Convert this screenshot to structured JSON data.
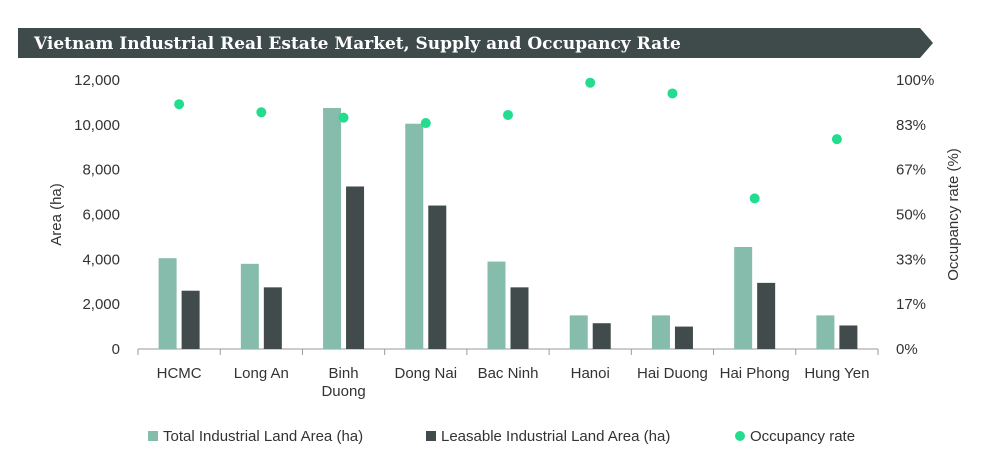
{
  "colors": {
    "banner": "#3f4a4a",
    "total": "#86bcac",
    "leasable": "#414b4b",
    "occupancy": "#23dd8f",
    "axis": "#9a9a9a",
    "text": "#333333"
  },
  "chart_data": {
    "type": "bar",
    "title": "Vietnam Industrial Real Estate Market, Supply and Occupancy Rate",
    "categories": [
      [
        "HCMC"
      ],
      [
        "Long An"
      ],
      [
        "Binh",
        "Duong"
      ],
      [
        "Dong Nai"
      ],
      [
        "Bac Ninh"
      ],
      [
        "Hanoi"
      ],
      [
        "Hai Duong"
      ],
      [
        "Hai Phong"
      ],
      [
        "Hung Yen"
      ]
    ],
    "ylabel": "Area (ha)",
    "y2label": "Occupancy rate (%)",
    "ylim": [
      0,
      12000
    ],
    "y2lim": [
      0,
      100
    ],
    "yticks": [
      "0",
      "2,000",
      "4,000",
      "6,000",
      "8,000",
      "10,000",
      "12,000"
    ],
    "ytick_values": [
      0,
      2000,
      4000,
      6000,
      8000,
      10000,
      12000
    ],
    "y2ticks": [
      "0%",
      "17%",
      "33%",
      "50%",
      "67%",
      "83%",
      "100%"
    ],
    "y2tick_values": [
      0,
      16.67,
      33.33,
      50,
      66.67,
      83.33,
      100
    ],
    "series": [
      {
        "name": "Total Industrial Land Area (ha)",
        "type": "bar",
        "axis": "left",
        "values": [
          4050,
          3800,
          10750,
          10050,
          3900,
          1500,
          1500,
          4550,
          1500
        ]
      },
      {
        "name": "Leasable Industrial Land Area (ha)",
        "type": "bar",
        "axis": "left",
        "values": [
          2600,
          2750,
          7250,
          6400,
          2750,
          1150,
          1000,
          2950,
          1050
        ]
      },
      {
        "name": "Occupancy rate",
        "type": "scatter",
        "axis": "right",
        "values": [
          91,
          88,
          86,
          84,
          87,
          99,
          95,
          56,
          78
        ]
      }
    ],
    "grid": false,
    "legend_position": "bottom"
  }
}
